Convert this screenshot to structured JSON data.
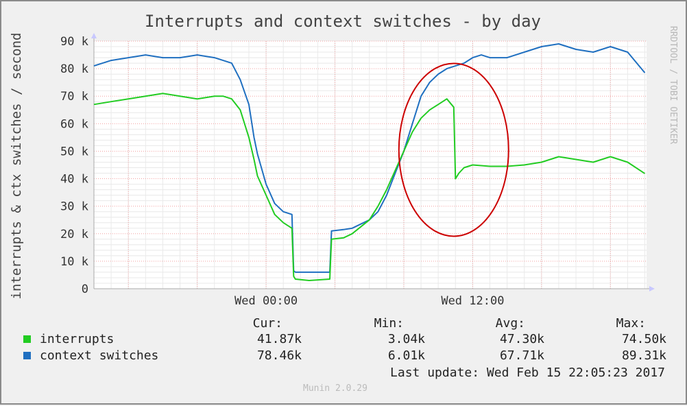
{
  "chart_data": {
    "type": "line",
    "title": "Interrupts and context switches - by day",
    "ylabel": "interrupts & ctx switches / second",
    "side_text": "RRDTOOL / TOBI OETIKER",
    "ylim": [
      0,
      90000
    ],
    "y_ticks": [
      {
        "value": 0,
        "label": "0"
      },
      {
        "value": 10000,
        "label": "10 k"
      },
      {
        "value": 20000,
        "label": "20 k"
      },
      {
        "value": 30000,
        "label": "30 k"
      },
      {
        "value": 40000,
        "label": "40 k"
      },
      {
        "value": 50000,
        "label": "50 k"
      },
      {
        "value": 60000,
        "label": "60 k"
      },
      {
        "value": 70000,
        "label": "70 k"
      },
      {
        "value": 80000,
        "label": "80 k"
      },
      {
        "value": 90000,
        "label": "90 k"
      }
    ],
    "x_range_hours": [
      -10,
      22.1
    ],
    "x_ticks": [
      {
        "value": 0,
        "label": "Wed 00:00"
      },
      {
        "value": 12,
        "label": "Wed 12:00"
      }
    ],
    "grid": true,
    "series": [
      {
        "name": "context switches",
        "color": "#1f6fc0",
        "x": [
          -10,
          -9,
          -8,
          -7,
          -6,
          -5,
          -4,
          -3,
          -2,
          -1.5,
          -1,
          -0.7,
          -0.5,
          0,
          0.5,
          1,
          1.5,
          1.6,
          1.7,
          2.5,
          3.7,
          3.8,
          4.5,
          5,
          6,
          6.5,
          7,
          7.5,
          8,
          8.5,
          9,
          9.5,
          10,
          10.5,
          11,
          11.5,
          12,
          12.5,
          13,
          14,
          15,
          16,
          17,
          18,
          19,
          20,
          21,
          22
        ],
        "values": [
          81000,
          83000,
          84000,
          85000,
          84000,
          84000,
          85000,
          84000,
          82000,
          76000,
          67000,
          55000,
          49000,
          38000,
          31000,
          28000,
          27000,
          6500,
          6000,
          6000,
          6000,
          21000,
          21500,
          22000,
          25000,
          28000,
          34000,
          42000,
          50000,
          60000,
          70000,
          75000,
          78000,
          80000,
          81000,
          82000,
          84000,
          85000,
          84000,
          84000,
          86000,
          88000,
          89000,
          87000,
          86000,
          88000,
          86000,
          78500
        ]
      },
      {
        "name": "interrupts",
        "color": "#22cc22",
        "x": [
          -10,
          -9,
          -8,
          -7,
          -6,
          -5,
          -4,
          -3,
          -2.5,
          -2,
          -1.5,
          -1,
          -0.7,
          -0.5,
          0,
          0.5,
          1,
          1.5,
          1.6,
          1.7,
          2.5,
          3.7,
          3.8,
          4.5,
          5,
          6,
          6.5,
          7,
          7.5,
          8,
          8.5,
          9,
          9.5,
          10,
          10.5,
          10.9,
          11,
          11.2,
          11.5,
          12,
          13,
          14,
          15,
          16,
          17,
          18,
          19,
          20,
          21,
          22
        ],
        "values": [
          67000,
          68000,
          69000,
          70000,
          71000,
          70000,
          69000,
          70000,
          70000,
          69000,
          65000,
          55000,
          47000,
          41000,
          34000,
          27000,
          24000,
          22000,
          4500,
          3500,
          3000,
          3500,
          18000,
          18500,
          20000,
          25000,
          30000,
          36000,
          43000,
          50000,
          57000,
          62000,
          65000,
          67000,
          69000,
          66000,
          40000,
          42000,
          44000,
          45000,
          44500,
          44500,
          45000,
          46000,
          48000,
          47000,
          46000,
          48000,
          46000,
          41870
        ]
      }
    ],
    "annotation": {
      "type": "ellipse",
      "color": "#cc0000"
    },
    "legend": {
      "headers": [
        "Cur:",
        "Min:",
        "Avg:",
        "Max:"
      ],
      "rows": [
        {
          "name": "interrupts",
          "color": "#22cc22",
          "cur": "41.87k",
          "min": "3.04k",
          "avg": "47.30k",
          "max": "74.50k"
        },
        {
          "name": "context switches",
          "color": "#1f6fc0",
          "cur": "78.46k",
          "min": "6.01k",
          "avg": "67.71k",
          "max": "89.31k"
        }
      ]
    },
    "last_update": "Last update:  Wed Feb 15 22:05:23 2017",
    "footer": "Munin 2.0.29"
  }
}
